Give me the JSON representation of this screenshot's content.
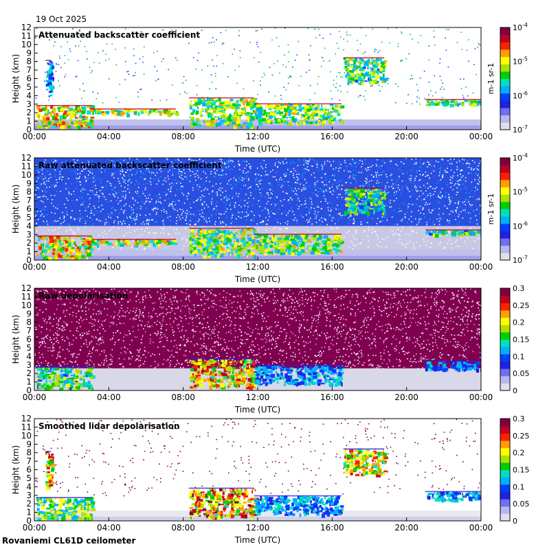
{
  "page": {
    "date": "19 Oct 2025",
    "footer": "Rovaniemi CL61D ceilometer"
  },
  "colormap": [
    "#e0e0ec",
    "#b8b8f0",
    "#7070f0",
    "#2020e8",
    "#0040ff",
    "#00b0ff",
    "#00e0c0",
    "#00d000",
    "#b0e000",
    "#ffff00",
    "#ffa000",
    "#ff2000",
    "#c00020",
    "#800040"
  ],
  "chart_data": [
    {
      "type": "heatmap",
      "title": "Attenuated backscatter coefficient",
      "xlabel": "Time (UTC)",
      "ylabel": "Height (km)",
      "x_ticks": [
        "00:00",
        "04:00",
        "08:00",
        "12:00",
        "16:00",
        "20:00",
        "00:00"
      ],
      "xlim": [
        0,
        24
      ],
      "y_ticks": [
        "0",
        "1",
        "2",
        "3",
        "4",
        "5",
        "6",
        "7",
        "8",
        "9",
        "10",
        "11",
        "12"
      ],
      "ylim": [
        0,
        12
      ],
      "colorbar": {
        "scale": "log",
        "labels": [
          "10-7",
          "10-6",
          "10-5",
          "10-4"
        ],
        "unit": "m-1 sr-1"
      },
      "features": [
        {
          "t0": 0.1,
          "t1": 3.1,
          "base": 0.3,
          "top": 2.9,
          "level": 0.78
        },
        {
          "t0": 3.1,
          "t1": 7.6,
          "base": 1.9,
          "top": 2.5,
          "level": 0.72
        },
        {
          "t0": 8.3,
          "t1": 11.8,
          "base": 0.5,
          "top": 3.8,
          "level": 0.68
        },
        {
          "t0": 11.8,
          "t1": 16.5,
          "base": 0.8,
          "top": 3.1,
          "level": 0.66
        },
        {
          "t0": 16.6,
          "t1": 18.8,
          "base": 5.5,
          "top": 8.5,
          "level": 0.62
        },
        {
          "t0": 21.0,
          "t1": 24.0,
          "base": 3.0,
          "top": 3.6,
          "level": 0.6
        },
        {
          "t0": 0.6,
          "t1": 0.9,
          "base": 4.0,
          "top": 8.2,
          "level": 0.45
        }
      ]
    },
    {
      "type": "heatmap",
      "title": "Raw attenuated backscatter coefficient",
      "xlabel": "Time (UTC)",
      "ylabel": "Height (km)",
      "x_ticks": [
        "00:00",
        "04:00",
        "08:00",
        "12:00",
        "16:00",
        "20:00",
        "00:00"
      ],
      "xlim": [
        0,
        24
      ],
      "y_ticks": [
        "0",
        "1",
        "2",
        "3",
        "4",
        "5",
        "6",
        "7",
        "8",
        "9",
        "10",
        "11",
        "12"
      ],
      "ylim": [
        0,
        12
      ],
      "colorbar": {
        "scale": "log",
        "labels": [
          "10-7",
          "10-6",
          "10-5",
          "10-4"
        ],
        "unit": "m-1 sr-1"
      },
      "features": [
        {
          "t0": 0.1,
          "t1": 3.1,
          "base": 0.3,
          "top": 2.9,
          "level": 0.78
        },
        {
          "t0": 3.1,
          "t1": 7.6,
          "base": 1.9,
          "top": 2.5,
          "level": 0.72
        },
        {
          "t0": 8.3,
          "t1": 11.8,
          "base": 0.5,
          "top": 3.8,
          "level": 0.68
        },
        {
          "t0": 11.8,
          "t1": 16.5,
          "base": 0.8,
          "top": 3.1,
          "level": 0.66
        },
        {
          "t0": 16.6,
          "t1": 18.8,
          "base": 5.5,
          "top": 8.5,
          "level": 0.62
        },
        {
          "t0": 21.0,
          "t1": 24.0,
          "base": 3.0,
          "top": 3.6,
          "level": 0.6
        }
      ]
    },
    {
      "type": "heatmap",
      "title": "Raw depolarisation",
      "xlabel": "Time (UTC)",
      "ylabel": "Height (km)",
      "x_ticks": [
        "00:00",
        "04:00",
        "08:00",
        "12:00",
        "16:00",
        "20:00",
        "00:00"
      ],
      "xlim": [
        0,
        24
      ],
      "y_ticks": [
        "0",
        "1",
        "2",
        "3",
        "4",
        "5",
        "6",
        "7",
        "8",
        "9",
        "10",
        "11",
        "12"
      ],
      "ylim": [
        0,
        12
      ],
      "colorbar": {
        "scale": "linear",
        "labels": [
          "0",
          "0.05",
          "0.1",
          "0.15",
          "0.2",
          "0.25",
          "0.3"
        ]
      },
      "features": [
        {
          "t0": 0.1,
          "t1": 3.1,
          "base": 0.3,
          "top": 2.8,
          "level": 0.6
        },
        {
          "t0": 8.3,
          "t1": 11.8,
          "base": 0.5,
          "top": 3.8,
          "level": 0.85
        },
        {
          "t0": 11.8,
          "t1": 16.5,
          "base": 0.8,
          "top": 3.0,
          "level": 0.45
        },
        {
          "t0": 21.0,
          "t1": 24.0,
          "base": 2.5,
          "top": 3.5,
          "level": 0.4
        }
      ]
    },
    {
      "type": "heatmap",
      "title": "Smoothed lidar depolarisation",
      "xlabel": "Time (UTC)",
      "ylabel": "Height (km)",
      "x_ticks": [
        "00:00",
        "04:00",
        "08:00",
        "12:00",
        "16:00",
        "20:00",
        "00:00"
      ],
      "xlim": [
        0,
        24
      ],
      "y_ticks": [
        "0",
        "1",
        "2",
        "3",
        "4",
        "5",
        "6",
        "7",
        "8",
        "9",
        "10",
        "11",
        "12"
      ],
      "ylim": [
        0,
        12
      ],
      "colorbar": {
        "scale": "linear",
        "labels": [
          "0",
          "0.05",
          "0.1",
          "0.15",
          "0.2",
          "0.25",
          "0.3"
        ]
      },
      "features": [
        {
          "t0": 0.1,
          "t1": 3.1,
          "base": 0.3,
          "top": 2.8,
          "level": 0.65
        },
        {
          "t0": 8.3,
          "t1": 11.8,
          "base": 0.5,
          "top": 3.9,
          "level": 0.88
        },
        {
          "t0": 11.8,
          "t1": 16.5,
          "base": 0.8,
          "top": 3.0,
          "level": 0.45
        },
        {
          "t0": 16.6,
          "t1": 18.8,
          "base": 5.5,
          "top": 8.5,
          "level": 0.8
        },
        {
          "t0": 21.0,
          "t1": 24.0,
          "base": 2.5,
          "top": 3.5,
          "level": 0.45
        },
        {
          "t0": 0.6,
          "t1": 0.9,
          "base": 4.0,
          "top": 8.2,
          "level": 0.85
        }
      ]
    }
  ]
}
